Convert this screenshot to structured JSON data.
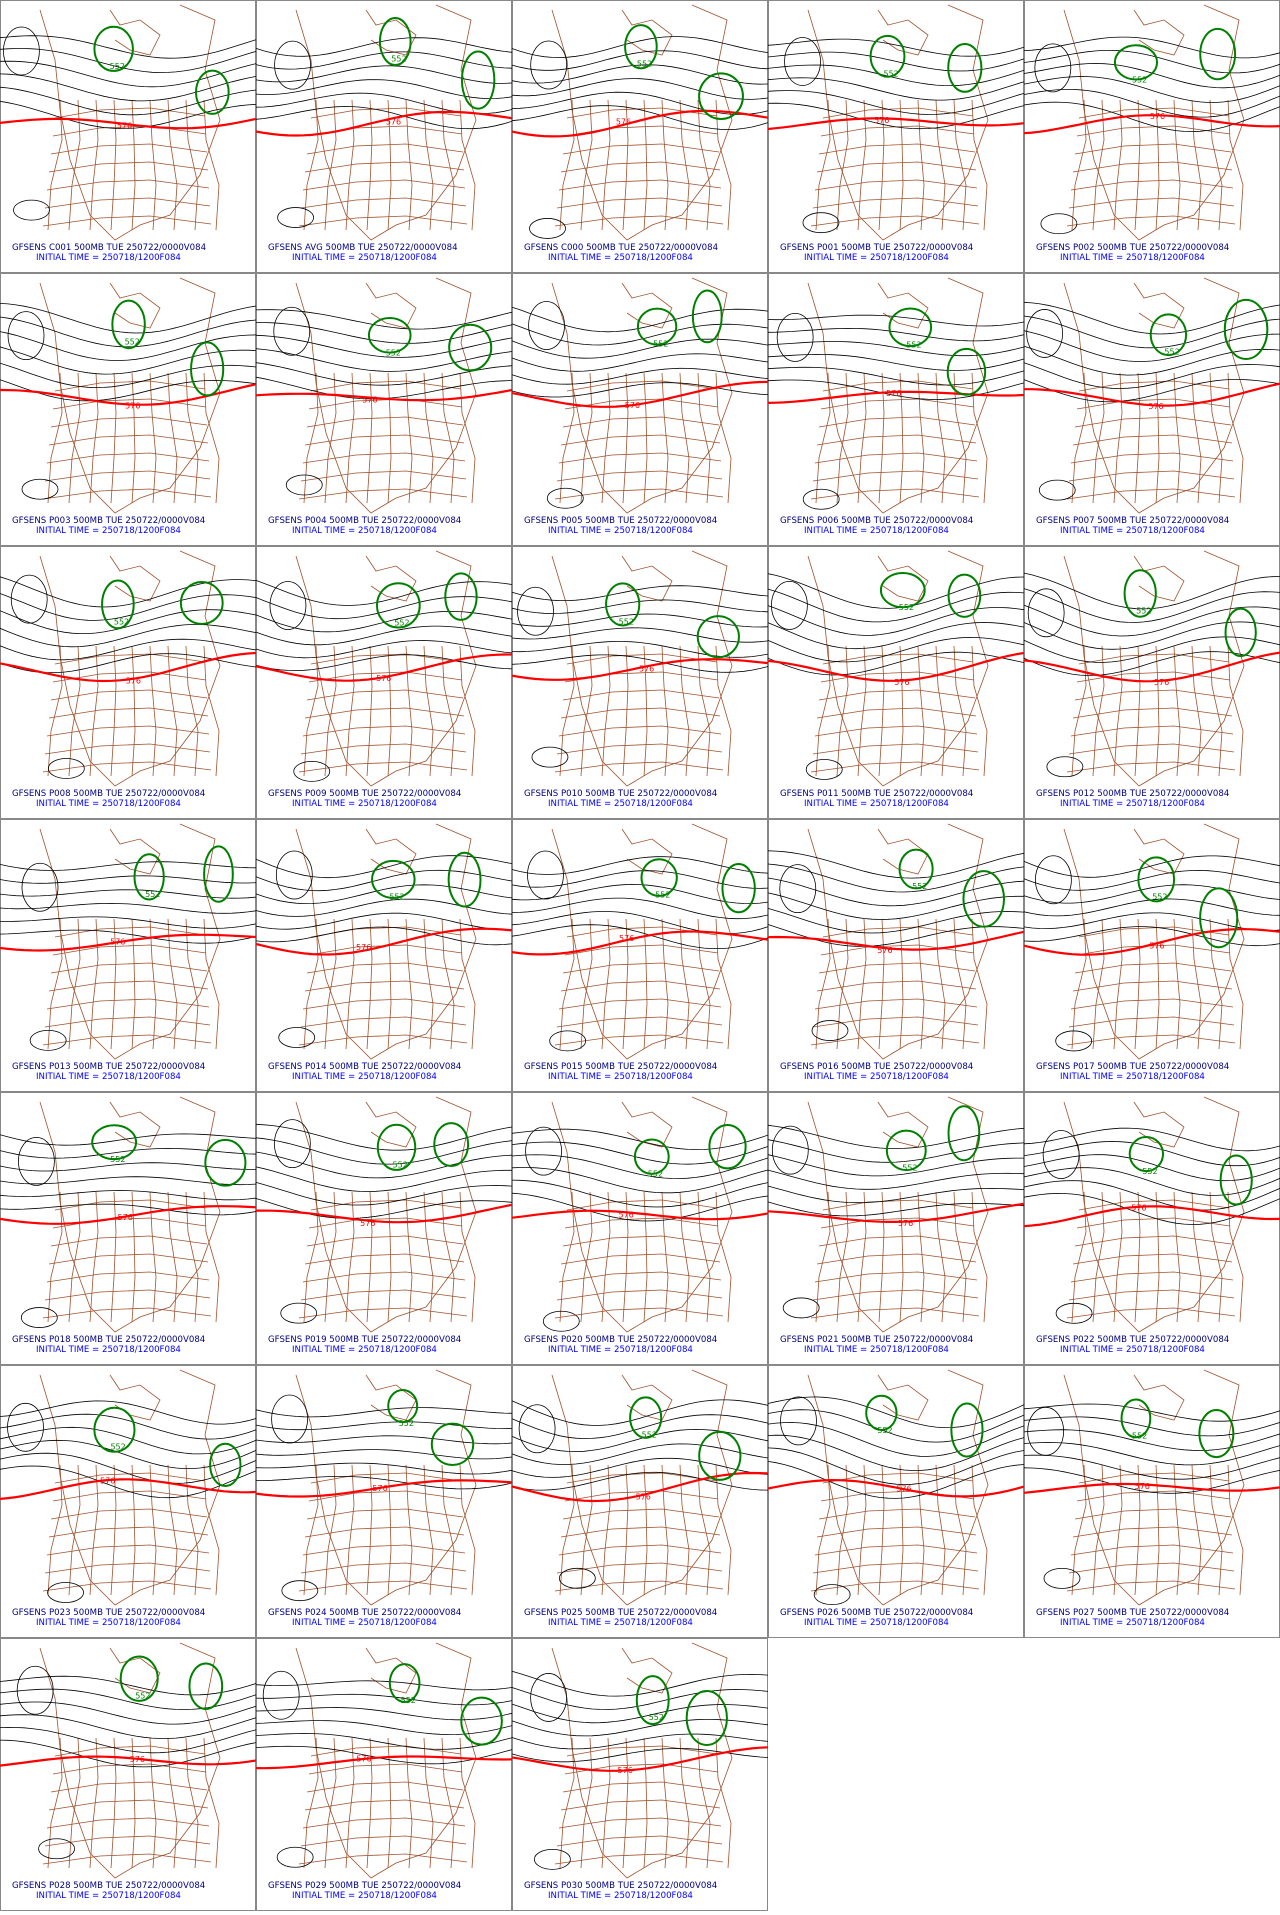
{
  "panels": [
    {
      "title": "GFSENS C001 500MB TUE 250722/0000V084",
      "init": "INITIAL TIME = 250718/1200F084",
      "labels": [
        "552",
        "576"
      ]
    },
    {
      "title": "GFSENS AVG 500MB TUE 250722/0000V084",
      "init": "INITIAL TIME = 250718/1200F084",
      "labels": [
        "552",
        "576"
      ]
    },
    {
      "title": "GFSENS C000 500MB TUE 250722/0000V084",
      "init": "INITIAL TIME = 250718/1200F084",
      "labels": [
        "552",
        "576"
      ]
    },
    {
      "title": "GFSENS P001 500MB TUE 250722/0000V084",
      "init": "INITIAL TIME = 250718/1200F084",
      "labels": [
        "552",
        "576"
      ]
    },
    {
      "title": "GFSENS P002 500MB TUE 250722/0000V084",
      "init": "INITIAL TIME = 250718/1200F084",
      "labels": [
        "552",
        "576"
      ]
    },
    {
      "title": "GFSENS P003 500MB TUE 250722/0000V084",
      "init": "INITIAL TIME = 250718/1200F084",
      "labels": [
        "552",
        "576"
      ]
    },
    {
      "title": "GFSENS P004 500MB TUE 250722/0000V084",
      "init": "INITIAL TIME = 250718/1200F084",
      "labels": [
        "552",
        "576"
      ]
    },
    {
      "title": "GFSENS P005 500MB TUE 250722/0000V084",
      "init": "INITIAL TIME = 250718/1200F084",
      "labels": [
        "552",
        "576"
      ]
    },
    {
      "title": "GFSENS P006 500MB TUE 250722/0000V084",
      "init": "INITIAL TIME = 250718/1200F084",
      "labels": [
        "552",
        "576"
      ]
    },
    {
      "title": "GFSENS P007 500MB TUE 250722/0000V084",
      "init": "INITIAL TIME = 250718/1200F084",
      "labels": [
        "552",
        "576"
      ]
    },
    {
      "title": "GFSENS P008 500MB TUE 250722/0000V084",
      "init": "INITIAL TIME = 250718/1200F084",
      "labels": [
        "552",
        "576"
      ]
    },
    {
      "title": "GFSENS P009 500MB TUE 250722/0000V084",
      "init": "INITIAL TIME = 250718/1200F084",
      "labels": [
        "552",
        "576"
      ]
    },
    {
      "title": "GFSENS P010 500MB TUE 250722/0000V084",
      "init": "INITIAL TIME = 250718/1200F084",
      "labels": [
        "552",
        "576"
      ]
    },
    {
      "title": "GFSENS P011 500MB TUE 250722/0000V084",
      "init": "INITIAL TIME = 250718/1200F084",
      "labels": [
        "552",
        "576"
      ]
    },
    {
      "title": "GFSENS P012 500MB TUE 250722/0000V084",
      "init": "INITIAL TIME = 250718/1200F084",
      "labels": [
        "552",
        "576"
      ]
    },
    {
      "title": "GFSENS P013 500MB TUE 250722/0000V084",
      "init": "INITIAL TIME = 250718/1200F084",
      "labels": [
        "552",
        "576"
      ]
    },
    {
      "title": "GFSENS P014 500MB TUE 250722/0000V084",
      "init": "INITIAL TIME = 250718/1200F084",
      "labels": [
        "552",
        "576"
      ]
    },
    {
      "title": "GFSENS P015 500MB TUE 250722/0000V084",
      "init": "INITIAL TIME = 250718/1200F084",
      "labels": [
        "552",
        "576"
      ]
    },
    {
      "title": "GFSENS P016 500MB TUE 250722/0000V084",
      "init": "INITIAL TIME = 250718/1200F084",
      "labels": [
        "552",
        "576"
      ]
    },
    {
      "title": "GFSENS P017 500MB TUE 250722/0000V084",
      "init": "INITIAL TIME = 250718/1200F084",
      "labels": [
        "552",
        "576"
      ]
    },
    {
      "title": "GFSENS P018 500MB TUE 250722/0000V084",
      "init": "INITIAL TIME = 250718/1200F084",
      "labels": [
        "552",
        "576"
      ]
    },
    {
      "title": "GFSENS P019 500MB TUE 250722/0000V084",
      "init": "INITIAL TIME = 250718/1200F084",
      "labels": [
        "552",
        "576"
      ]
    },
    {
      "title": "GFSENS P020 500MB TUE 250722/0000V084",
      "init": "INITIAL TIME = 250718/1200F084",
      "labels": [
        "552",
        "576"
      ]
    },
    {
      "title": "GFSENS P021 500MB TUE 250722/0000V084",
      "init": "INITIAL TIME = 250718/1200F084",
      "labels": [
        "552",
        "576"
      ]
    },
    {
      "title": "GFSENS P022 500MB TUE 250722/0000V084",
      "init": "INITIAL TIME = 250718/1200F084",
      "labels": [
        "552",
        "576"
      ]
    },
    {
      "title": "GFSENS P023 500MB TUE 250722/0000V084",
      "init": "INITIAL TIME = 250718/1200F084",
      "labels": [
        "552",
        "576"
      ]
    },
    {
      "title": "GFSENS P024 500MB TUE 250722/0000V084",
      "init": "INITIAL TIME = 250718/1200F084",
      "labels": [
        "552",
        "576"
      ]
    },
    {
      "title": "GFSENS P025 500MB TUE 250722/0000V084",
      "init": "INITIAL TIME = 250718/1200F084",
      "labels": [
        "552",
        "576"
      ]
    },
    {
      "title": "GFSENS P026 500MB TUE 250722/0000V084",
      "init": "INITIAL TIME = 250718/1200F084",
      "labels": [
        "552",
        "576"
      ]
    },
    {
      "title": "GFSENS P027 500MB TUE 250722/0000V084",
      "init": "INITIAL TIME = 250718/1200F084",
      "labels": [
        "552",
        "576"
      ]
    },
    {
      "title": "GFSENS P028 500MB TUE 250722/0000V084",
      "init": "INITIAL TIME = 250718/1200F084",
      "labels": [
        "552",
        "576"
      ]
    },
    {
      "title": "GFSENS P029 500MB TUE 250722/0000V084",
      "init": "INITIAL TIME = 250718/1200F084",
      "labels": [
        "552",
        "576"
      ]
    },
    {
      "title": "GFSENS P030 500MB TUE 250722/0000V084",
      "init": "INITIAL TIME = 250718/1200F084",
      "labels": [
        "552",
        "576"
      ]
    }
  ]
}
